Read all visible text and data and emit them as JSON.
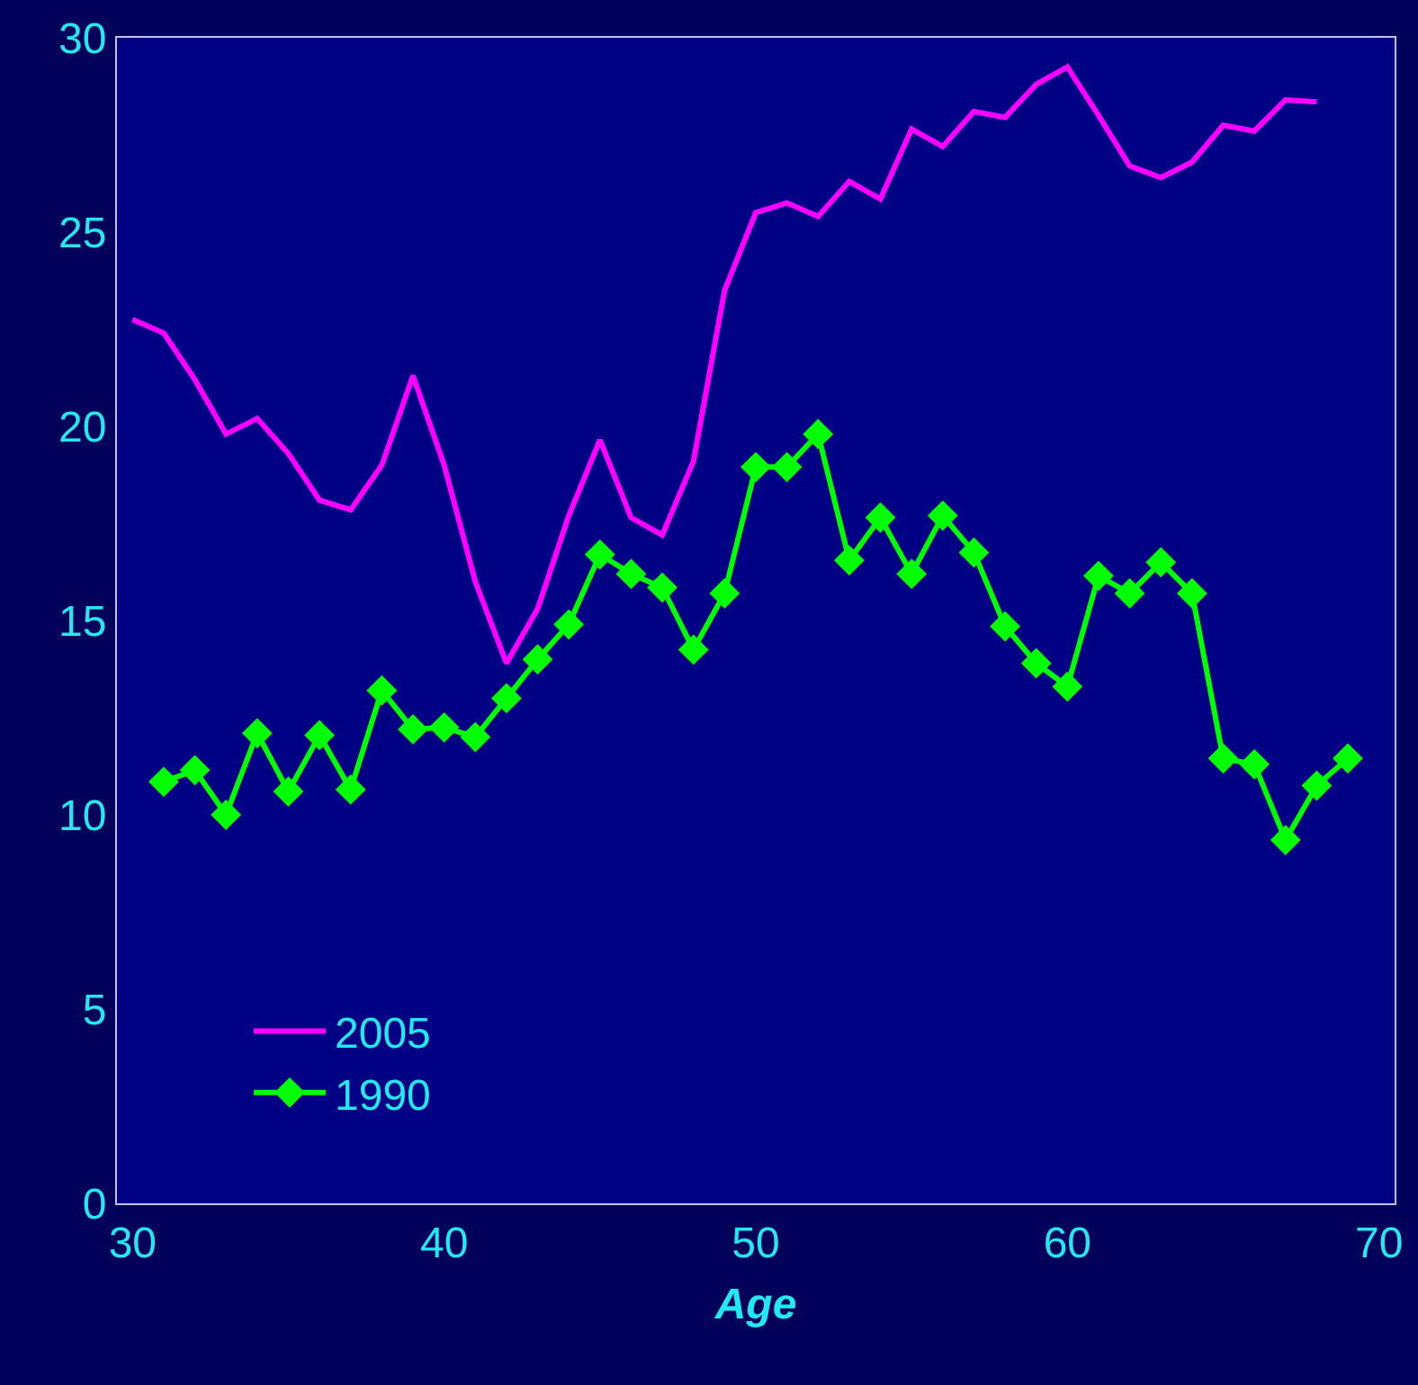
{
  "chart_data": {
    "type": "line",
    "xlabel": "Age",
    "xlim": [
      29.5,
      70.5
    ],
    "xticks": [
      30,
      40,
      50,
      60,
      70
    ],
    "ylim": [
      0,
      30
    ],
    "yticks": [
      0,
      5,
      10,
      15,
      20,
      25,
      30
    ],
    "grid": false,
    "legend": "bottom left",
    "line_style": "solid",
    "series": [
      {
        "name": "2005",
        "color": "#ff00ff",
        "marker": "none",
        "x": [
          30,
          31,
          32,
          33,
          34,
          35,
          36,
          37,
          38,
          39,
          40,
          41,
          42,
          43,
          44,
          45,
          46,
          47,
          48,
          49,
          50,
          51,
          52,
          53,
          54,
          55,
          56,
          57,
          58,
          59,
          60,
          61,
          62,
          63,
          64,
          65,
          66,
          67,
          68
        ],
        "values": [
          22.75,
          22.4,
          21.2,
          19.8,
          20.2,
          19.3,
          18.1,
          17.85,
          19.0,
          21.3,
          19.0,
          16.0,
          13.9,
          15.3,
          17.7,
          19.65,
          17.65,
          17.2,
          19.1,
          23.5,
          25.5,
          25.75,
          25.4,
          26.3,
          25.85,
          27.65,
          27.2,
          28.1,
          27.95,
          28.8,
          29.25,
          28.0,
          26.7,
          26.4,
          26.8,
          27.75,
          27.6,
          28.4,
          28.35
        ]
      },
      {
        "name": "1990",
        "color": "#00ff00",
        "marker": "diamond",
        "x": [
          31,
          32,
          33,
          34,
          35,
          36,
          37,
          38,
          39,
          40,
          41,
          42,
          43,
          44,
          45,
          46,
          47,
          48,
          49,
          50,
          51,
          52,
          53,
          54,
          55,
          56,
          57,
          58,
          59,
          60,
          61,
          62,
          63,
          64,
          65,
          66,
          67,
          68,
          69
        ],
        "values": [
          10.85,
          11.15,
          10.0,
          12.1,
          10.6,
          12.05,
          10.65,
          13.2,
          12.2,
          12.25,
          12.0,
          13.0,
          14.0,
          14.9,
          16.7,
          16.2,
          15.85,
          14.25,
          15.7,
          18.95,
          18.95,
          19.8,
          16.55,
          17.65,
          16.2,
          17.7,
          16.75,
          14.85,
          13.9,
          13.3,
          16.15,
          15.7,
          16.5,
          15.7,
          11.45,
          11.3,
          9.35,
          10.75,
          11.45
        ]
      }
    ]
  }
}
